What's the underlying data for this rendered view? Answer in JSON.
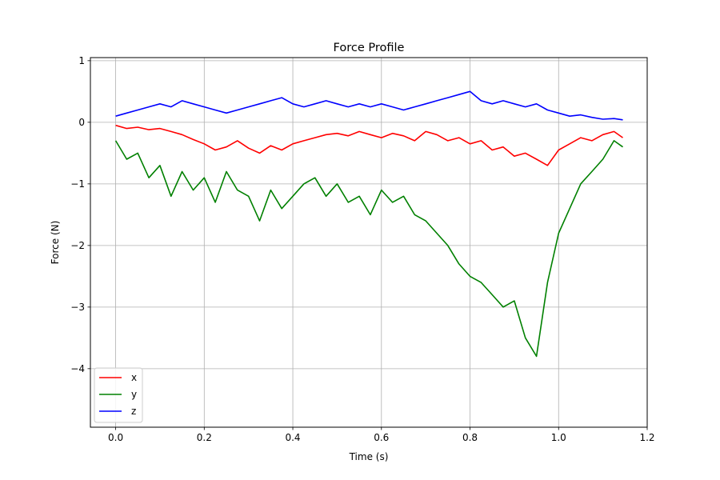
{
  "chart_data": {
    "type": "line",
    "title": "Force Profile",
    "xlabel": "Time (s)",
    "ylabel": "Force (N)",
    "xlim": [
      -0.057,
      1.2
    ],
    "ylim": [
      -4.95,
      1.05
    ],
    "xticks": [
      0.0,
      0.2,
      0.4,
      0.6,
      0.8,
      1.0,
      1.2
    ],
    "xtick_labels": [
      "0.0",
      "0.2",
      "0.4",
      "0.6",
      "0.8",
      "1.0",
      "1.2"
    ],
    "yticks": [
      1,
      0,
      -1,
      -2,
      -3,
      -4
    ],
    "ytick_labels": [
      "1",
      "0",
      "−1",
      "−2",
      "−3",
      "−4"
    ],
    "grid": true,
    "legend": "lower-left",
    "series": [
      {
        "name": "x",
        "color": "#ff0000",
        "x": [
          0.0,
          0.025,
          0.05,
          0.075,
          0.1,
          0.125,
          0.15,
          0.175,
          0.2,
          0.225,
          0.25,
          0.275,
          0.3,
          0.325,
          0.35,
          0.375,
          0.4,
          0.425,
          0.45,
          0.475,
          0.5,
          0.525,
          0.55,
          0.575,
          0.6,
          0.625,
          0.65,
          0.675,
          0.7,
          0.725,
          0.75,
          0.775,
          0.8,
          0.825,
          0.85,
          0.875,
          0.9,
          0.925,
          0.95,
          0.975,
          1.0,
          1.025,
          1.05,
          1.075,
          1.1,
          1.125,
          1.145
        ],
        "values": [
          -0.05,
          -0.1,
          -0.08,
          -0.12,
          -0.1,
          -0.15,
          -0.2,
          -0.28,
          -0.35,
          -0.45,
          -0.4,
          -0.3,
          -0.42,
          -0.5,
          -0.38,
          -0.45,
          -0.35,
          -0.3,
          -0.25,
          -0.2,
          -0.18,
          -0.22,
          -0.15,
          -0.2,
          -0.25,
          -0.18,
          -0.22,
          -0.3,
          -0.15,
          -0.2,
          -0.3,
          -0.25,
          -0.35,
          -0.3,
          -0.45,
          -0.4,
          -0.55,
          -0.5,
          -0.6,
          -0.7,
          -0.45,
          -0.35,
          -0.25,
          -0.3,
          -0.2,
          -0.15,
          -0.25
        ]
      },
      {
        "name": "y",
        "color": "#008000",
        "x": [
          0.0,
          0.025,
          0.05,
          0.075,
          0.1,
          0.125,
          0.15,
          0.175,
          0.2,
          0.225,
          0.25,
          0.275,
          0.3,
          0.325,
          0.35,
          0.375,
          0.4,
          0.425,
          0.45,
          0.475,
          0.5,
          0.525,
          0.55,
          0.575,
          0.6,
          0.625,
          0.65,
          0.675,
          0.7,
          0.725,
          0.75,
          0.775,
          0.8,
          0.825,
          0.85,
          0.875,
          0.9,
          0.925,
          0.95,
          0.975,
          1.0,
          1.025,
          1.05,
          1.075,
          1.1,
          1.125,
          1.145
        ],
        "values": [
          -0.3,
          -0.6,
          -0.5,
          -0.9,
          -0.7,
          -1.2,
          -0.8,
          -1.1,
          -0.9,
          -1.3,
          -0.8,
          -1.1,
          -1.2,
          -1.6,
          -1.1,
          -1.4,
          -1.2,
          -1.0,
          -0.9,
          -1.2,
          -1.0,
          -1.3,
          -1.2,
          -1.5,
          -1.1,
          -1.3,
          -1.2,
          -1.5,
          -1.6,
          -1.8,
          -2.0,
          -2.3,
          -2.5,
          -2.6,
          -2.8,
          -3.0,
          -2.9,
          -3.5,
          -3.8,
          -2.6,
          -1.8,
          -1.4,
          -1.0,
          -0.8,
          -0.6,
          -0.3,
          -0.4
        ]
      },
      {
        "name": "z",
        "color": "#0000ff",
        "x": [
          0.0,
          0.025,
          0.05,
          0.075,
          0.1,
          0.125,
          0.15,
          0.175,
          0.2,
          0.225,
          0.25,
          0.275,
          0.3,
          0.325,
          0.35,
          0.375,
          0.4,
          0.425,
          0.45,
          0.475,
          0.5,
          0.525,
          0.55,
          0.575,
          0.6,
          0.625,
          0.65,
          0.675,
          0.7,
          0.725,
          0.75,
          0.775,
          0.8,
          0.825,
          0.85,
          0.875,
          0.9,
          0.925,
          0.95,
          0.975,
          1.0,
          1.025,
          1.05,
          1.075,
          1.1,
          1.125,
          1.145
        ],
        "values": [
          0.1,
          0.15,
          0.2,
          0.25,
          0.3,
          0.25,
          0.35,
          0.3,
          0.25,
          0.2,
          0.15,
          0.2,
          0.25,
          0.3,
          0.35,
          0.4,
          0.3,
          0.25,
          0.3,
          0.35,
          0.3,
          0.25,
          0.3,
          0.25,
          0.3,
          0.25,
          0.2,
          0.25,
          0.3,
          0.35,
          0.4,
          0.45,
          0.5,
          0.35,
          0.3,
          0.35,
          0.3,
          0.25,
          0.3,
          0.2,
          0.15,
          0.1,
          0.12,
          0.08,
          0.05,
          0.06,
          0.04
        ]
      }
    ]
  }
}
